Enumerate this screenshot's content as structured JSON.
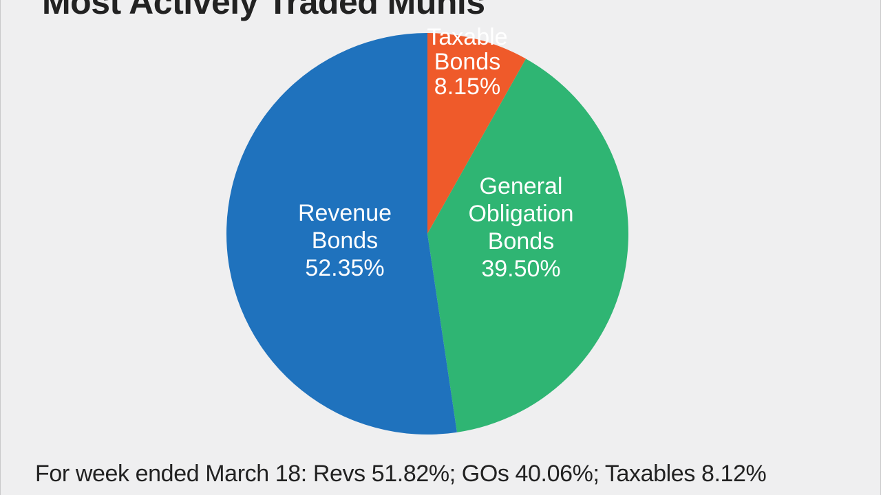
{
  "chart_data": {
    "type": "pie",
    "title": "Most Actively Traded Munis",
    "slices": [
      {
        "label_lines": [
          "Taxable",
          "Bonds",
          "8.15%"
        ],
        "value": 8.15,
        "color": "#ef5a2a"
      },
      {
        "label_lines": [
          "General",
          "Obligation",
          "Bonds",
          "39.50%"
        ],
        "value": 39.5,
        "color": "#2fb573"
      },
      {
        "label_lines": [
          "Revenue",
          "Bonds",
          "52.35%"
        ],
        "value": 52.35,
        "color": "#1f72bd"
      }
    ],
    "start_angle_deg": 0,
    "direction": "clockwise",
    "footnote": "For week ended March 18: Revs 51.82%; GOs 40.06%; Taxables 8.12%"
  }
}
